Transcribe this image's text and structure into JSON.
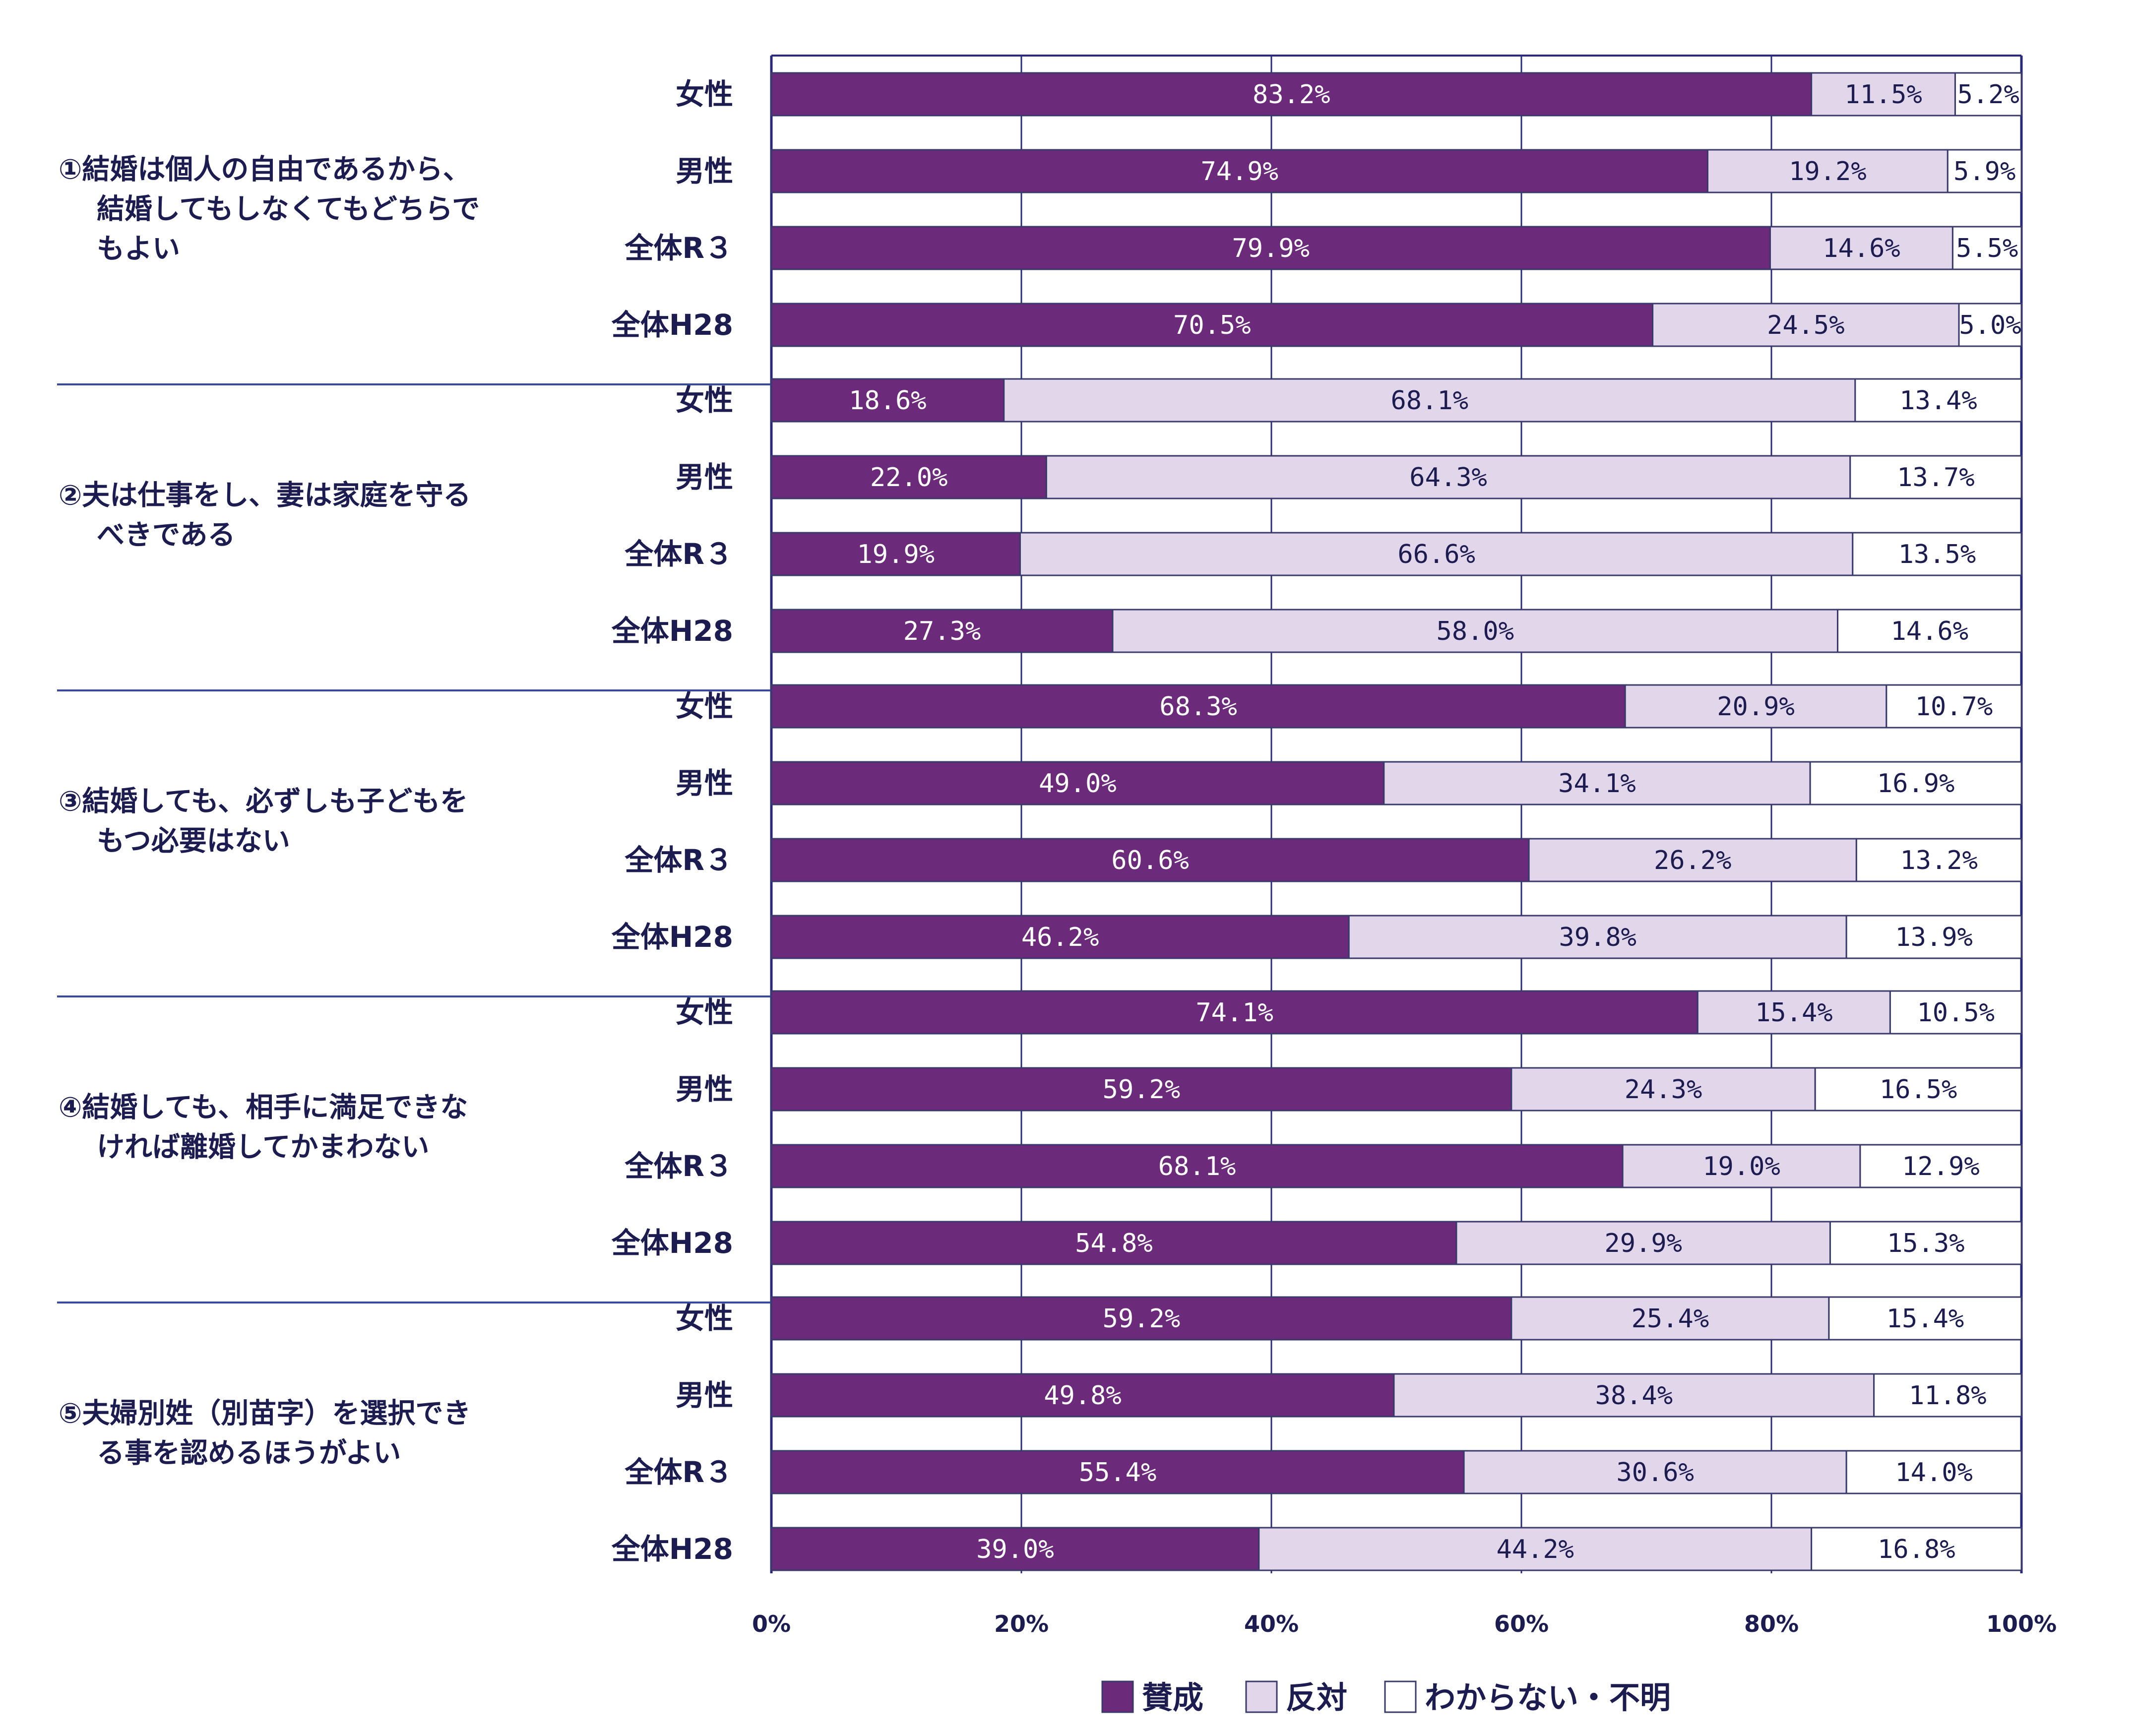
{
  "chart_data": {
    "type": "bar",
    "orientation": "horizontal",
    "stacked": "percent",
    "xlim": [
      0,
      100
    ],
    "xticks": [
      "0%",
      "20%",
      "40%",
      "60%",
      "80%",
      "100%"
    ],
    "grid": true,
    "legend_position": "bottom",
    "series": [
      {
        "name": "賛成",
        "color": "#6b2a7a",
        "label_color": "#ffffff"
      },
      {
        "name": "反対",
        "color": "#e2d6ea",
        "label_color": "#1c1c50"
      },
      {
        "name": "わからない・不明",
        "color": "#ffffff",
        "label_color": "#1c1c50"
      }
    ],
    "groups": [
      {
        "title_lines": [
          "①結婚は個人の自由であるから、",
          "結婚してもしなくてもどちらで",
          "もよい"
        ],
        "rows": [
          {
            "label": "女性",
            "values": [
              83.2,
              11.5,
              5.2
            ],
            "labels": [
              "83.2%",
              "11.5%",
              "5.2%"
            ]
          },
          {
            "label": "男性",
            "values": [
              74.9,
              19.2,
              5.9
            ],
            "labels": [
              "74.9%",
              "19.2%",
              "5.9%"
            ]
          },
          {
            "label": "全体R３",
            "values": [
              79.9,
              14.6,
              5.5
            ],
            "labels": [
              "79.9%",
              "14.6%",
              "5.5%"
            ]
          },
          {
            "label": "全体H28",
            "values": [
              70.5,
              24.5,
              5.0
            ],
            "labels": [
              "70.5%",
              "24.5%",
              "5.0%"
            ]
          }
        ]
      },
      {
        "title_lines": [
          "②夫は仕事をし、妻は家庭を守る",
          "べきである"
        ],
        "rows": [
          {
            "label": "女性",
            "values": [
              18.6,
              68.1,
              13.4
            ],
            "labels": [
              "18.6%",
              "68.1%",
              "13.4%"
            ]
          },
          {
            "label": "男性",
            "values": [
              22.0,
              64.3,
              13.7
            ],
            "labels": [
              "22.0%",
              "64.3%",
              "13.7%"
            ]
          },
          {
            "label": "全体R３",
            "values": [
              19.9,
              66.6,
              13.5
            ],
            "labels": [
              "19.9%",
              "66.6%",
              "13.5%"
            ]
          },
          {
            "label": "全体H28",
            "values": [
              27.3,
              58.0,
              14.6
            ],
            "labels": [
              "27.3%",
              "58.0%",
              "14.6%"
            ]
          }
        ]
      },
      {
        "title_lines": [
          "③結婚しても、必ずしも子どもを",
          "もつ必要はない"
        ],
        "rows": [
          {
            "label": "女性",
            "values": [
              68.3,
              20.9,
              10.7
            ],
            "labels": [
              "68.3%",
              "20.9%",
              "10.7%"
            ]
          },
          {
            "label": "男性",
            "values": [
              49.0,
              34.1,
              16.9
            ],
            "labels": [
              "49.0%",
              "34.1%",
              "16.9%"
            ]
          },
          {
            "label": "全体R３",
            "values": [
              60.6,
              26.2,
              13.2
            ],
            "labels": [
              "60.6%",
              "26.2%",
              "13.2%"
            ]
          },
          {
            "label": "全体H28",
            "values": [
              46.2,
              39.8,
              13.9
            ],
            "labels": [
              "46.2%",
              "39.8%",
              "13.9%"
            ]
          }
        ]
      },
      {
        "title_lines": [
          "④結婚しても、相手に満足できな",
          "ければ離婚してかまわない"
        ],
        "rows": [
          {
            "label": "女性",
            "values": [
              74.1,
              15.4,
              10.5
            ],
            "labels": [
              "74.1%",
              "15.4%",
              "10.5%"
            ]
          },
          {
            "label": "男性",
            "values": [
              59.2,
              24.3,
              16.5
            ],
            "labels": [
              "59.2%",
              "24.3%",
              "16.5%"
            ]
          },
          {
            "label": "全体R３",
            "values": [
              68.1,
              19.0,
              12.9
            ],
            "labels": [
              "68.1%",
              "19.0%",
              "12.9%"
            ]
          },
          {
            "label": "全体H28",
            "values": [
              54.8,
              29.9,
              15.3
            ],
            "labels": [
              "54.8%",
              "29.9%",
              "15.3%"
            ]
          }
        ]
      },
      {
        "title_lines": [
          "⑤夫婦別姓（別苗字）を選択でき",
          "る事を認めるほうがよい"
        ],
        "rows": [
          {
            "label": "女性",
            "values": [
              59.2,
              25.4,
              15.4
            ],
            "labels": [
              "59.2%",
              "25.4%",
              "15.4%"
            ]
          },
          {
            "label": "男性",
            "values": [
              49.8,
              38.4,
              11.8
            ],
            "labels": [
              "49.8%",
              "38.4%",
              "11.8%"
            ]
          },
          {
            "label": "全体R３",
            "values": [
              55.4,
              30.6,
              14.0
            ],
            "labels": [
              "55.4%",
              "30.6%",
              "14.0%"
            ]
          },
          {
            "label": "全体H28",
            "values": [
              39.0,
              44.2,
              16.8
            ],
            "labels": [
              "39.0%",
              "44.2%",
              "16.8%"
            ]
          }
        ]
      }
    ]
  },
  "colors": {
    "axis": "#2a2a7a",
    "separator": "#3a4a9a",
    "bar_outline": "#3a3a6a",
    "text": "#1c1c50"
  }
}
